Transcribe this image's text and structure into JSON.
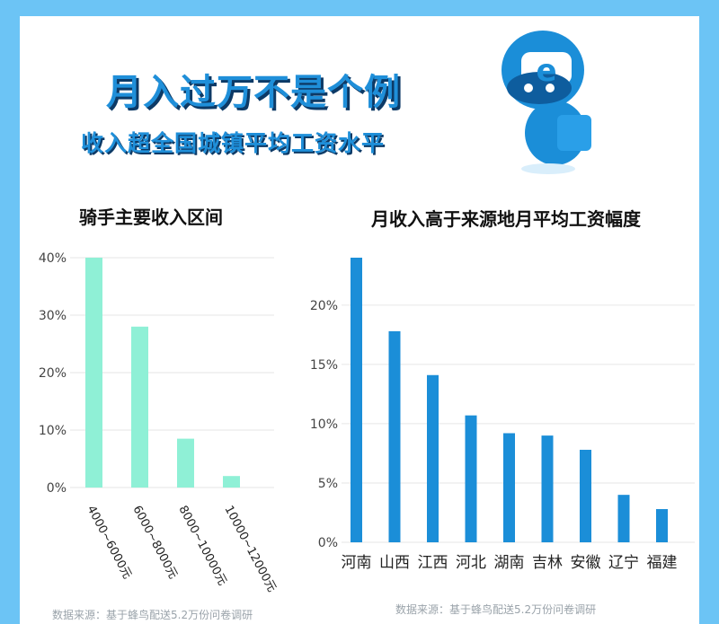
{
  "header": {
    "title": "月入过万不是个例",
    "subtitle": "收入超全国城镇平均工资水平"
  },
  "colors": {
    "background": "#6cc4f5",
    "title": "#1f8fd9",
    "bar_left": "#8ff0d6",
    "bar_right": "#1b8ed8",
    "grid": "#e6e6e6",
    "source_text": "#9aa3aa"
  },
  "mascot": {
    "icon": "robot-mascot-icon"
  },
  "chart_data": [
    {
      "type": "bar",
      "title": "骑手主要收入区间",
      "categories": [
        "4000~6000元",
        "6000~8000元",
        "8000~10000元",
        "10000~12000元"
      ],
      "values": [
        40,
        28,
        8.5,
        2
      ],
      "ylim": [
        0,
        40
      ],
      "yticks": [
        0,
        10,
        20,
        30,
        40
      ],
      "ytick_labels": [
        "0%",
        "10%",
        "20%",
        "30%",
        "40%"
      ],
      "grid": true,
      "xlabel": "",
      "ylabel": "",
      "source": "数据来源：基于蜂鸟配送5.2万份问卷调研"
    },
    {
      "type": "bar",
      "title": "月收入高于来源地月平均工资幅度",
      "categories": [
        "河南",
        "山西",
        "江西",
        "河北",
        "湖南",
        "吉林",
        "安徽",
        "辽宁",
        "福建"
      ],
      "values": [
        24,
        17.8,
        14.1,
        10.7,
        9.2,
        9.0,
        7.8,
        4.0,
        2.8
      ],
      "ylim": [
        0,
        24
      ],
      "yticks": [
        0,
        5,
        10,
        15,
        20
      ],
      "ytick_labels": [
        "0%",
        "5%",
        "10%",
        "15%",
        "20%"
      ],
      "grid": true,
      "xlabel": "",
      "ylabel": "",
      "source": "数据来源：基于蜂鸟配送5.2万份问卷调研"
    }
  ]
}
